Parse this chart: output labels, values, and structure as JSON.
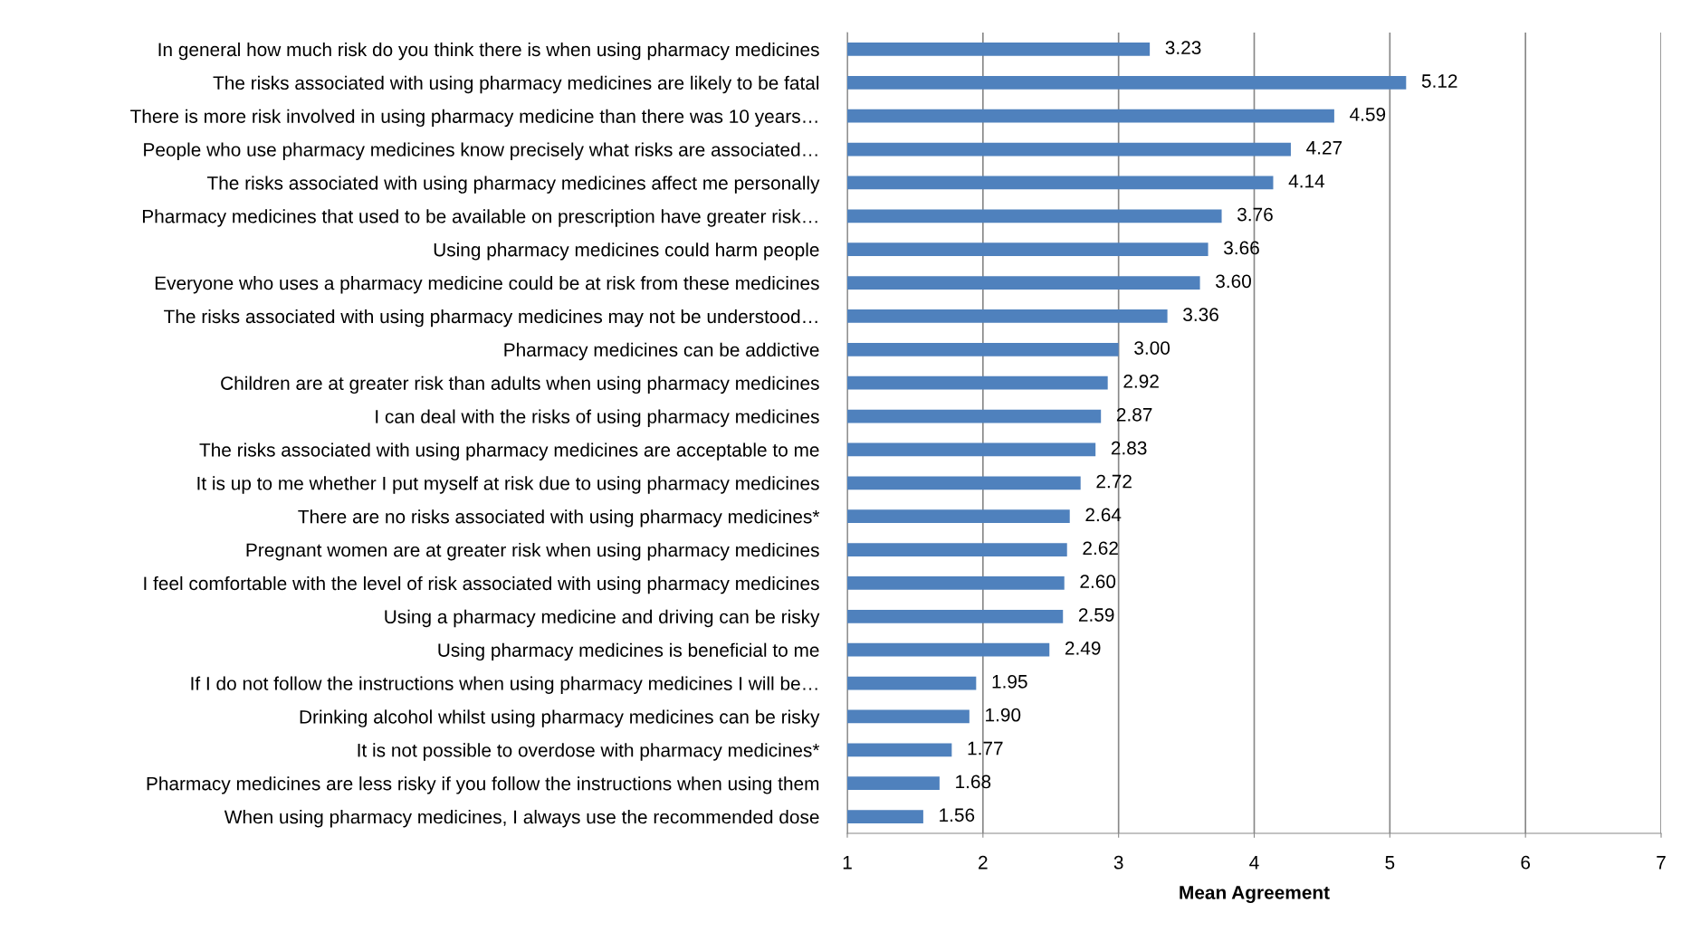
{
  "chart_data": {
    "type": "bar",
    "orientation": "horizontal",
    "xlabel": "Mean Agreement",
    "categories": [
      "In general how much risk do you think there is when using pharmacy medicines",
      "The risks associated with using pharmacy medicines are likely to be fatal",
      "There is more risk involved in using pharmacy medicine than there was 10 years…",
      "People who use pharmacy medicines know precisely what risks are associated…",
      "The risks associated with using pharmacy medicines affect me personally",
      "Pharmacy medicines that used to be available on prescription have greater risk…",
      "Using pharmacy medicines could harm people",
      "Everyone who uses a pharmacy medicine could be at risk from these medicines",
      "The risks associated with using pharmacy medicines may not be understood…",
      "Pharmacy medicines can be addictive",
      "Children are at greater risk than adults when using pharmacy medicines",
      "I can deal with the risks of using pharmacy medicines",
      "The risks associated with using pharmacy medicines are acceptable to me",
      "It is up to me whether I put myself at risk due to using pharmacy medicines",
      "There are no risks associated with using pharmacy medicines*",
      "Pregnant women are at greater risk when using pharmacy medicines",
      "I feel comfortable with the level of risk associated with using pharmacy medicines",
      "Using a pharmacy medicine and driving can be risky",
      "Using pharmacy medicines is beneficial to me",
      "If I do not follow the instructions when using pharmacy medicines I will be…",
      "Drinking alcohol whilst using pharmacy medicines can be risky",
      "It is not possible to overdose with pharmacy medicines*",
      "Pharmacy medicines are less risky if you follow the instructions when using them",
      "When using pharmacy medicines, I always use the recommended dose"
    ],
    "values": [
      3.23,
      5.12,
      4.59,
      4.27,
      4.14,
      3.76,
      3.66,
      3.6,
      3.36,
      3.0,
      2.92,
      2.87,
      2.83,
      2.72,
      2.64,
      2.62,
      2.6,
      2.59,
      2.49,
      1.95,
      1.9,
      1.77,
      1.68,
      1.56
    ],
    "value_labels": [
      "3.23",
      "5.12",
      "4.59",
      "4.27",
      "4.14",
      "3.76",
      "3.66",
      "3.60",
      "3.36",
      "3.00",
      "2.92",
      "2.87",
      "2.83",
      "2.72",
      "2.64",
      "2.62",
      "2.60",
      "2.59",
      "2.49",
      "1.95",
      "1.90",
      "1.77",
      "1.68",
      "1.56"
    ],
    "color": "#4f81bd",
    "xlim": [
      1,
      7
    ],
    "xticks": [
      1,
      2,
      3,
      4,
      5,
      6,
      7
    ],
    "grid": "x",
    "legend": false
  }
}
